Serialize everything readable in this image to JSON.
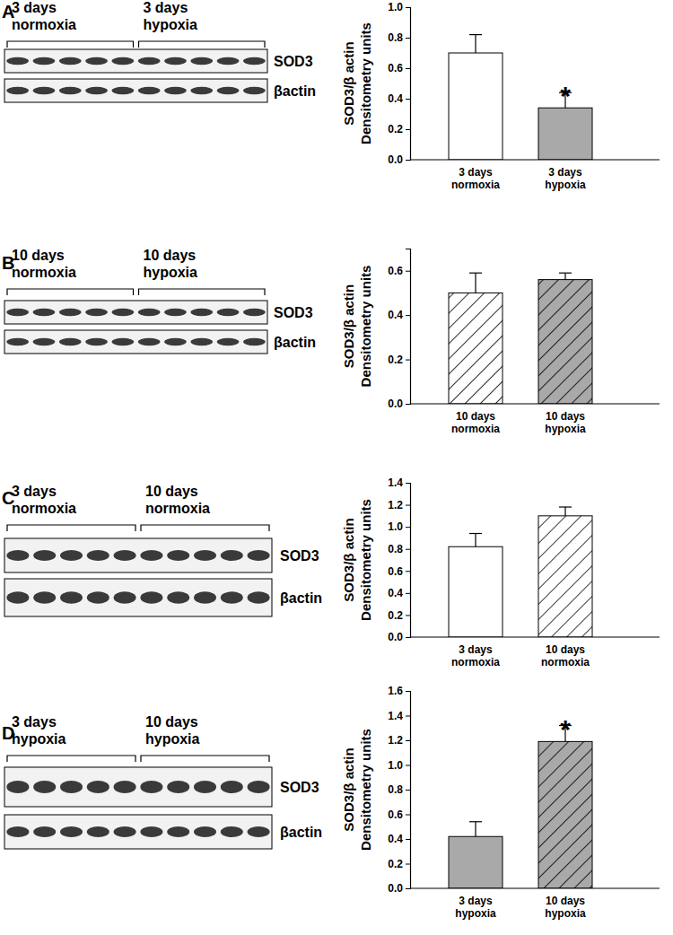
{
  "chart_data": [
    {
      "type": "bar",
      "categories": [
        "3 days\nnormoxia",
        "3 days\nhypoxia"
      ],
      "values": [
        0.7,
        0.34
      ],
      "errors": [
        0.12,
        0.1
      ],
      "colors": [
        "#ffffff",
        "#a9a9a9"
      ],
      "ylabel": "SOD3/β actin\nDensitometry units",
      "ylim": [
        0,
        1.0
      ],
      "yticks": [
        {
          "value": 0,
          "label": "0.0"
        },
        0.2,
        0.4,
        0.6,
        0.8,
        {
          "value": 1,
          "label": "1.0"
        }
      ],
      "annotations": [
        {
          "category": 1,
          "text": "*"
        }
      ]
    },
    {
      "type": "bar",
      "categories": [
        "10 days\nnormoxia",
        "10 days\nhypoxia"
      ],
      "values": [
        0.5,
        0.56
      ],
      "errors": [
        0.09,
        0.03
      ],
      "colors": [
        "#ffffff",
        "#a9a9a9"
      ],
      "ylabel": "SOD3/β actin\nDensitometry units",
      "ylim": [
        0,
        0.7
      ],
      "yticks": [
        {
          "value": 0,
          "label": "0.0"
        },
        0.2,
        0.4,
        0.6
      ]
    },
    {
      "type": "bar",
      "categories": [
        "3 days\nnormoxia",
        "10 days\nnormoxia"
      ],
      "values": [
        0.82,
        1.1
      ],
      "errors": [
        0.12,
        0.08
      ],
      "colors": [
        "#ffffff",
        "#ffffff"
      ],
      "ylabel": "SOD3/β actin\nDensitometry units",
      "ylim": [
        0,
        1.4
      ],
      "yticks": [
        {
          "value": 0,
          "label": "0.0"
        },
        0.2,
        0.4,
        0.6,
        0.8,
        {
          "value": 1,
          "label": "1.0"
        },
        1.2,
        1.4
      ]
    },
    {
      "type": "bar",
      "categories": [
        "3 days\nhypoxia",
        "10 days\nhypoxia"
      ],
      "values": [
        0.42,
        1.19
      ],
      "errors": [
        0.12,
        0.13
      ],
      "colors": [
        "#a9a9a9",
        "#a9a9a9"
      ],
      "ylabel": "SOD3/β actin\nDensitometry units",
      "ylim": [
        0,
        1.6
      ],
      "yticks": [
        {
          "value": 0,
          "label": "0.0"
        },
        0.2,
        0.4,
        0.6,
        0.8,
        {
          "value": 1,
          "label": "1.0"
        },
        1.2,
        1.4,
        1.6
      ],
      "annotations": [
        {
          "category": 1,
          "text": "*"
        }
      ]
    }
  ],
  "blots": [
    {
      "letter": "A",
      "groups": [
        "3 days\nnormoxia",
        "3 days\nhypoxia"
      ],
      "lanes": [
        5,
        5
      ],
      "bands": [
        "SOD3",
        "βactin"
      ]
    },
    {
      "letter": "B",
      "groups": [
        "10 days\nnormoxia",
        "10 days\nhypoxia"
      ],
      "lanes": [
        5,
        5
      ],
      "bands": [
        "SOD3",
        "βactin"
      ]
    },
    {
      "letter": "C",
      "groups": [
        "3 days\nnormoxia",
        "10 days\nnormoxia"
      ],
      "lanes": [
        5,
        5
      ],
      "bands": [
        "SOD3",
        "βactin"
      ]
    },
    {
      "letter": "D",
      "groups": [
        "3 days\nhypoxia",
        "10 days\nhypoxia"
      ],
      "lanes": [
        5,
        5
      ],
      "bands": [
        "SOD3",
        "βactin"
      ]
    }
  ]
}
